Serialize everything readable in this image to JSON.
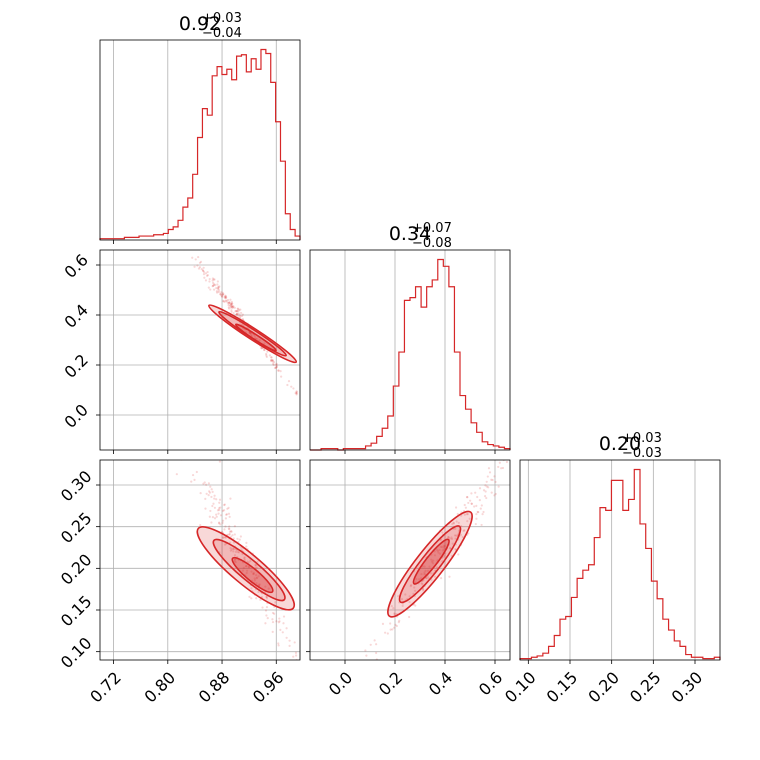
{
  "chart_data": {
    "type": "corner",
    "color": "#d62728",
    "parameters": [
      {
        "index": 0,
        "title_median": "0.92",
        "title_plus": "+0.03",
        "title_minus": "−0.04",
        "range": [
          0.7,
          0.995
        ],
        "ticks": [
          0.72,
          0.8,
          0.88,
          0.96
        ],
        "tick_labels": [
          "0.72",
          "0.80",
          "0.88",
          "0.96"
        ],
        "hist_counts": [
          1,
          1,
          1,
          1,
          1,
          2,
          2,
          2,
          3,
          3,
          3,
          4,
          4,
          5,
          8,
          10,
          15,
          25,
          32,
          50,
          78,
          100,
          95,
          125,
          132,
          126,
          130,
          122,
          140,
          141,
          128,
          138,
          130,
          145,
          142,
          120,
          90,
          60,
          20,
          8,
          3
        ]
      },
      {
        "index": 1,
        "title_median": "0.34",
        "title_plus": "+0.07",
        "title_minus": "−0.08",
        "range": [
          -0.14,
          0.66
        ],
        "ticks": [
          0.0,
          0.2,
          0.4,
          0.6
        ],
        "tick_labels": [
          "0.0",
          "0.2",
          "0.4",
          "0.6"
        ],
        "hist_counts": [
          0,
          0,
          1,
          1,
          1,
          0,
          1,
          1,
          1,
          1,
          3,
          5,
          10,
          16,
          25,
          47,
          72,
          110,
          112,
          120,
          105,
          120,
          125,
          140,
          135,
          120,
          72,
          40,
          30,
          20,
          13,
          6,
          4,
          3,
          2,
          1
        ]
      },
      {
        "index": 2,
        "title_median": "0.20",
        "title_plus": "+0.03",
        "title_minus": "−0.03",
        "range": [
          0.09,
          0.33
        ],
        "ticks": [
          0.1,
          0.15,
          0.2,
          0.25,
          0.3
        ],
        "tick_labels": [
          "0.10",
          "0.15",
          "0.20",
          "0.25",
          "0.30"
        ],
        "hist_counts": [
          1,
          1,
          2,
          3,
          5,
          10,
          18,
          30,
          32,
          46,
          60,
          66,
          70,
          90,
          112,
          110,
          132,
          132,
          110,
          118,
          140,
          100,
          82,
          58,
          45,
          30,
          22,
          14,
          10,
          4,
          2,
          2,
          1,
          1,
          2
        ]
      }
    ],
    "grid": true,
    "ylabel": "",
    "xlabel": ""
  }
}
